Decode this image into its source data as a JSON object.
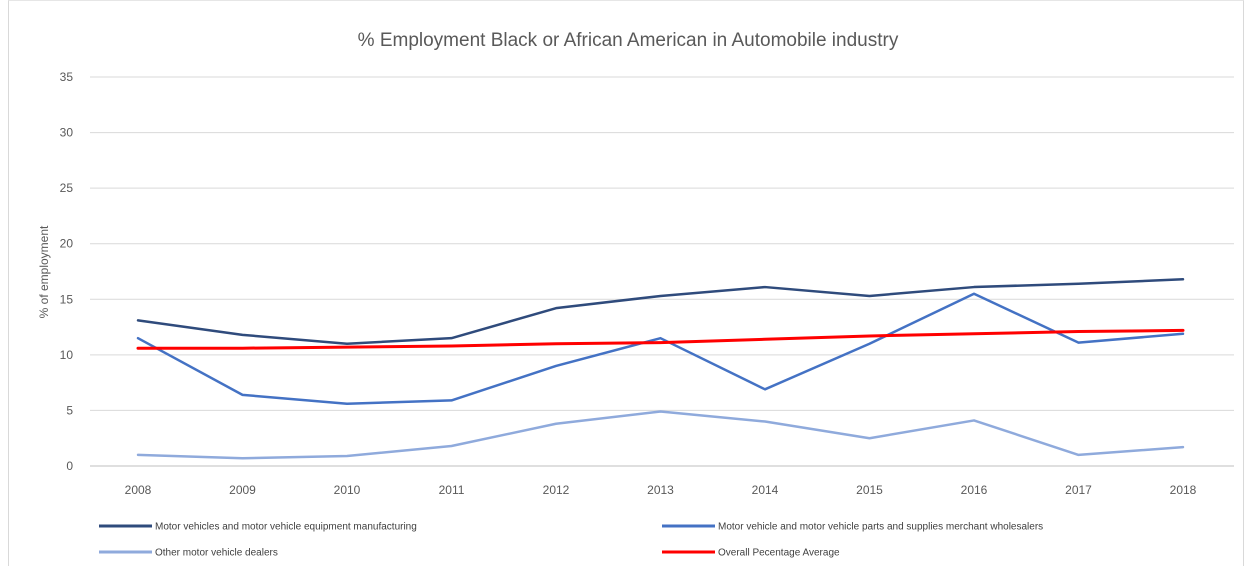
{
  "chart_data": {
    "type": "line",
    "title": "% Employment Black or African American in Automobile industry",
    "xlabel": "",
    "ylabel": "% of employment",
    "ylim": [
      0,
      35
    ],
    "yticks": [
      "0",
      "5",
      "10",
      "15",
      "20",
      "25",
      "30",
      "35"
    ],
    "categories": [
      "2008",
      "2009",
      "2010",
      "2011",
      "2012",
      "2013",
      "2014",
      "2015",
      "2016",
      "2017",
      "2018"
    ],
    "grid": "horizontal",
    "legend_position": "bottom",
    "series": [
      {
        "name": "Motor vehicles and motor vehicle equipment manufacturing",
        "color": "#2f4b7c",
        "values": [
          13.1,
          11.8,
          11.0,
          11.5,
          14.2,
          15.3,
          16.1,
          15.3,
          16.1,
          16.4,
          16.8
        ]
      },
      {
        "name": "Motor vehicle and motor vehicle parts and supplies merchant wholesalers",
        "color": "#4472c4",
        "values": [
          11.5,
          6.4,
          5.6,
          5.9,
          9.0,
          11.5,
          6.9,
          11.0,
          15.5,
          11.1,
          11.9
        ]
      },
      {
        "name": "Other motor vehicle dealers",
        "color": "#8faadc",
        "values": [
          1.0,
          0.7,
          0.9,
          1.8,
          3.8,
          4.9,
          4.0,
          2.5,
          4.1,
          1.0,
          1.7
        ]
      },
      {
        "name": "Overall Pecentage Average",
        "color": "#ff0000",
        "values": [
          10.6,
          10.6,
          10.7,
          10.8,
          11.0,
          11.1,
          11.4,
          11.7,
          11.9,
          12.1,
          12.2
        ]
      }
    ]
  }
}
